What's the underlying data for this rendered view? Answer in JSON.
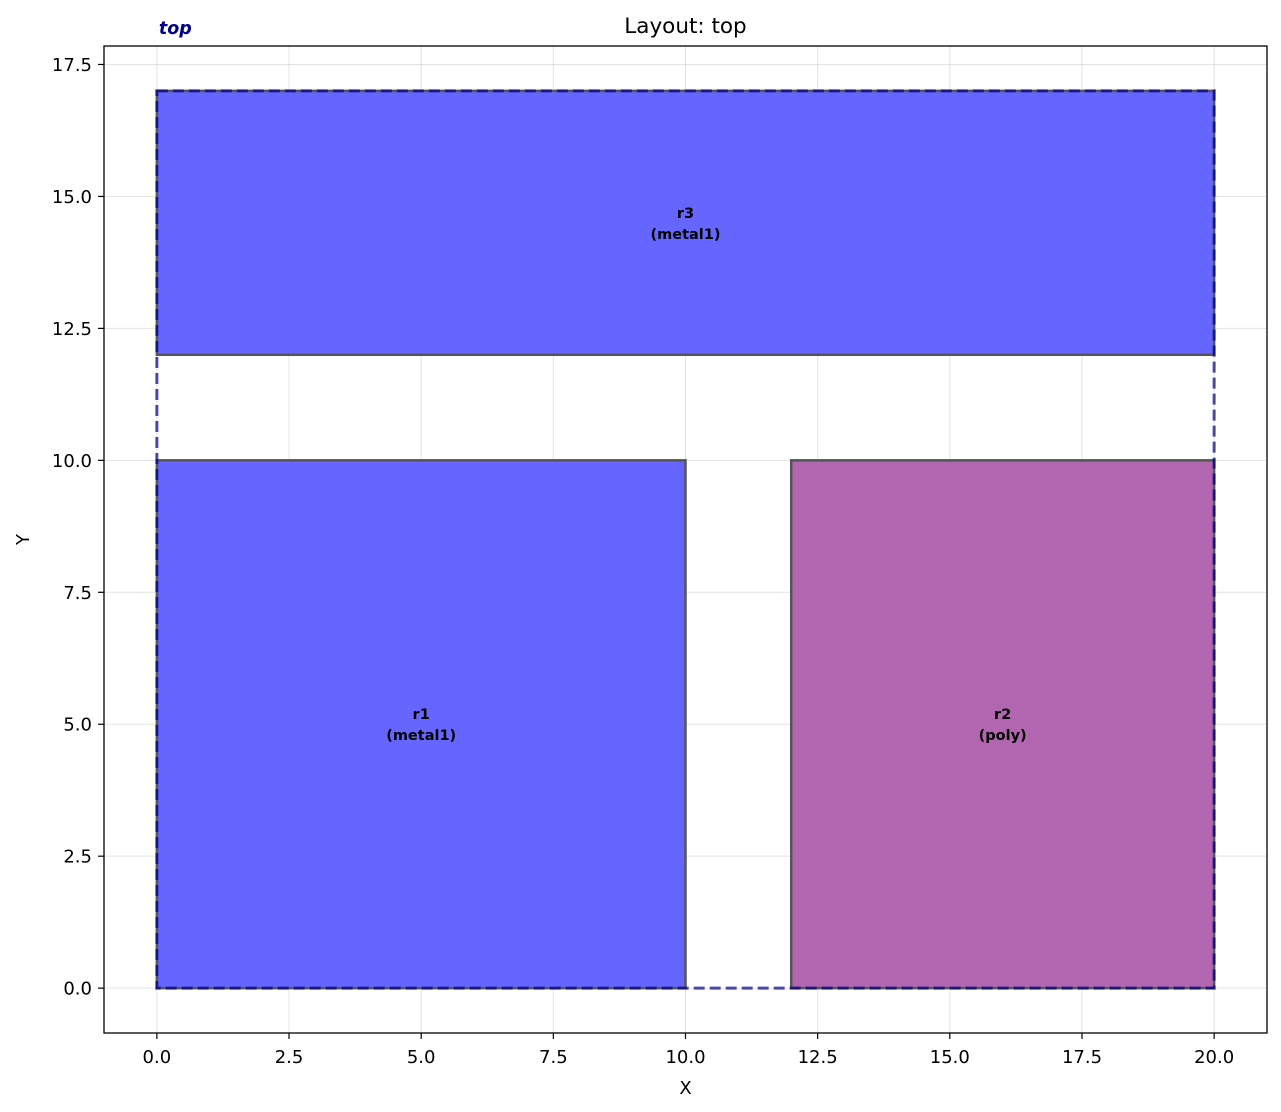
{
  "chart_data": {
    "type": "layout",
    "title": "Layout: top",
    "xlabel": "X",
    "ylabel": "Y",
    "xlim": [
      -1.0,
      21.0
    ],
    "ylim": [
      -0.85,
      17.85
    ],
    "grid": true,
    "x_ticks": [
      "0.0",
      "2.5",
      "5.0",
      "7.5",
      "10.0",
      "12.5",
      "15.0",
      "17.5",
      "20.0"
    ],
    "y_ticks": [
      "0.0",
      "2.5",
      "5.0",
      "7.5",
      "10.0",
      "12.5",
      "15.0",
      "17.5"
    ],
    "cell": {
      "name": "top",
      "bbox": [
        0,
        0,
        20,
        17
      ],
      "color": "#00008b",
      "outline_style": "dashed"
    },
    "rectangles": [
      {
        "name": "r1",
        "layer": "metal1",
        "label_line1": "r1",
        "label_line2": "(metal1)",
        "x0": 0,
        "y0": 0,
        "x1": 10,
        "y1": 10,
        "color": "#6666ff"
      },
      {
        "name": "r2",
        "layer": "poly",
        "label_line1": "r2",
        "label_line2": "(poly)",
        "x0": 12,
        "y0": 0,
        "x1": 20,
        "y1": 10,
        "color": "#b266b0"
      },
      {
        "name": "r3",
        "layer": "metal1",
        "label_line1": "r3",
        "label_line2": "(metal1)",
        "x0": 0,
        "y0": 12,
        "x1": 20,
        "y1": 17,
        "color": "#6666ff"
      }
    ]
  }
}
